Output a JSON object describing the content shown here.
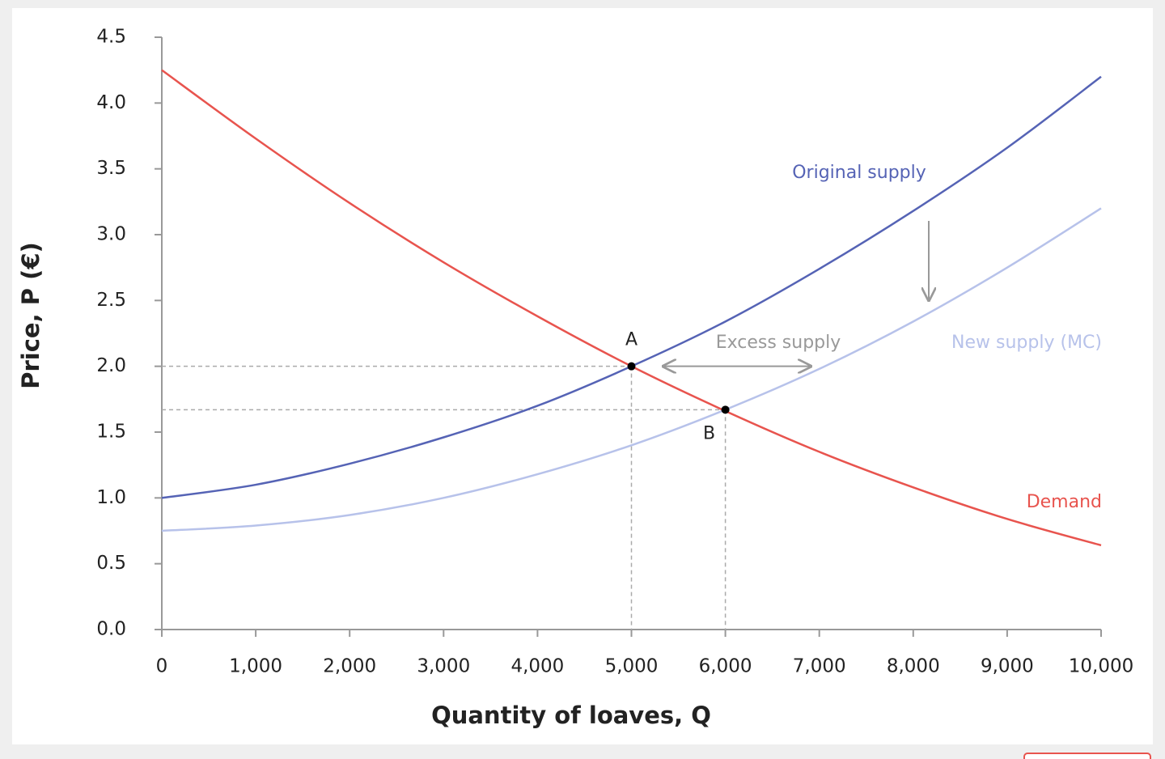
{
  "chart_data": {
    "type": "line",
    "xlabel": "Quantity of loaves, Q",
    "ylabel": "Price, P (€)",
    "x": [
      0,
      1000,
      2000,
      3000,
      4000,
      5000,
      6000,
      7000,
      8000,
      9000,
      10000
    ],
    "series": [
      {
        "name": "Demand",
        "color": "#e8544e",
        "values": [
          4.25,
          3.73,
          3.24,
          2.79,
          2.38,
          2.0,
          1.66,
          1.35,
          1.08,
          0.84,
          0.64
        ]
      },
      {
        "name": "Original supply",
        "color": "#5563b5",
        "values": [
          1.0,
          1.1,
          1.26,
          1.46,
          1.7,
          2.0,
          2.34,
          2.74,
          3.18,
          3.66,
          4.2
        ]
      },
      {
        "name": "New supply (MC)",
        "color": "#b7c2ea",
        "values": [
          0.75,
          0.79,
          0.87,
          1.0,
          1.18,
          1.4,
          1.67,
          1.98,
          2.34,
          2.75,
          3.2
        ]
      }
    ],
    "points": [
      {
        "label": "A",
        "x": 5000,
        "y": 2.0
      },
      {
        "label": "B",
        "x": 6000,
        "y": 1.67
      }
    ],
    "annotation": "Excess supply",
    "xlim": [
      0,
      10000
    ],
    "ylim": [
      0,
      4.5
    ],
    "xticks": [
      0,
      {
        "value": 1000,
        "label": "1,000"
      },
      {
        "value": 2000,
        "label": "2,000"
      },
      {
        "value": 3000,
        "label": "3,000"
      },
      {
        "value": 4000,
        "label": "4,000"
      },
      {
        "value": 5000,
        "label": "5,000"
      },
      {
        "value": 6000,
        "label": "6,000"
      },
      {
        "value": 7000,
        "label": "7,000"
      },
      {
        "value": 8000,
        "label": "8,000"
      },
      {
        "value": 9000,
        "label": "9,000"
      },
      {
        "value": 10000,
        "label": "10,000"
      }
    ],
    "yticks": [
      {
        "value": 0,
        "label": "0.0"
      },
      0.5,
      {
        "value": 1,
        "label": "1.0"
      },
      1.5,
      {
        "value": 2,
        "label": "2.0"
      },
      2.5,
      {
        "value": 3,
        "label": "3.0"
      },
      3.5,
      {
        "value": 4,
        "label": "4.0"
      },
      4.5
    ],
    "grid": false
  }
}
